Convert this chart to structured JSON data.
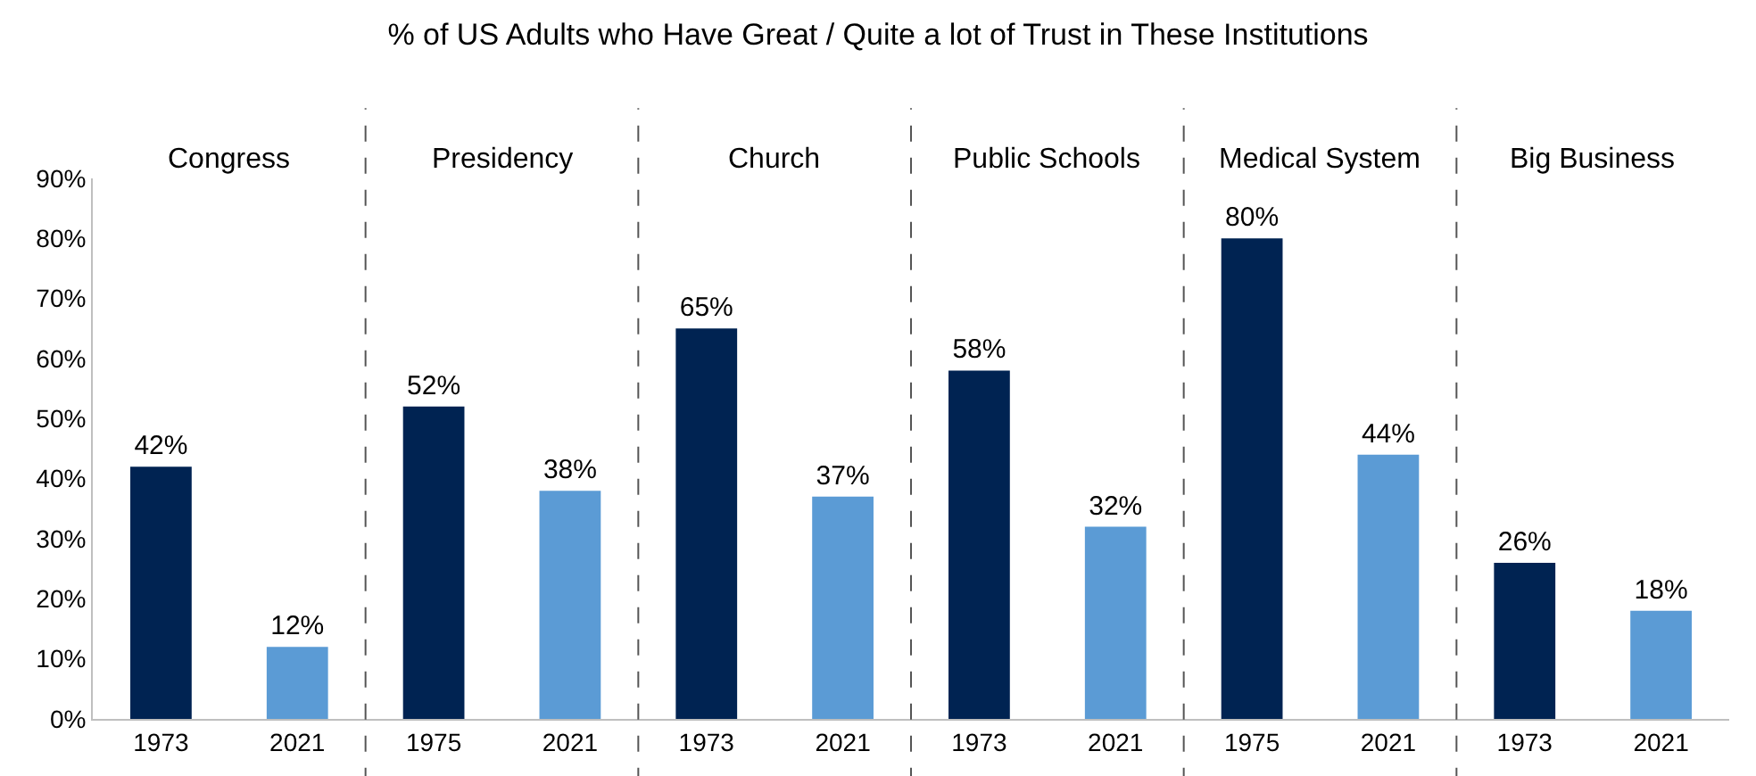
{
  "chart_data": {
    "type": "bar",
    "title": "% of US Adults who Have Great / Quite a lot of Trust in These Institutions",
    "categories": [
      "1973",
      "2021",
      "1975",
      "2021",
      "1973",
      "2021",
      "1973",
      "2021",
      "1975",
      "2021",
      "1973",
      "2021"
    ],
    "values": [
      42,
      12,
      52,
      38,
      65,
      37,
      58,
      32,
      80,
      44,
      26,
      18
    ],
    "colors": [
      "#002352",
      "#5b9bd5",
      "#002352",
      "#5b9bd5",
      "#002352",
      "#5b9bd5",
      "#002352",
      "#5b9bd5",
      "#002352",
      "#5b9bd5",
      "#002352",
      "#5b9bd5"
    ],
    "value_labels": [
      "42%",
      "12%",
      "52%",
      "38%",
      "65%",
      "37%",
      "58%",
      "32%",
      "80%",
      "44%",
      "26%",
      "18%"
    ],
    "ylim": [
      0,
      90
    ],
    "yticks": [
      {
        "value": 0,
        "label": "0%"
      },
      {
        "value": 10,
        "label": "10%"
      },
      {
        "value": 20,
        "label": "20%"
      },
      {
        "value": 30,
        "label": "30%"
      },
      {
        "value": 40,
        "label": "40%"
      },
      {
        "value": 50,
        "label": "50%"
      },
      {
        "value": 60,
        "label": "60%"
      },
      {
        "value": 70,
        "label": "70%"
      },
      {
        "value": 80,
        "label": "80%"
      },
      {
        "value": 90,
        "label": "90%"
      }
    ],
    "annotations": [
      "Congress",
      "Presidency",
      "Church",
      "Public Schools",
      "Medical System",
      "Big Business"
    ],
    "grid": false
  }
}
